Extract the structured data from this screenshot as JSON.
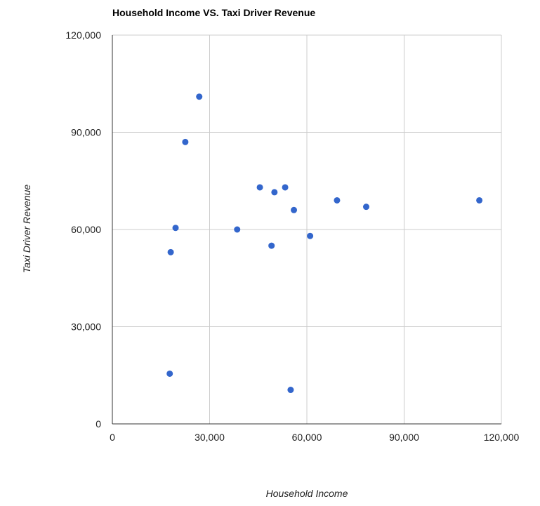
{
  "chart_data": {
    "type": "scatter",
    "title": "Household Income VS. Taxi Driver Revenue",
    "xlabel": "Household Income",
    "ylabel": "Taxi Driver Revenue",
    "xlim": [
      0,
      120000
    ],
    "ylim": [
      0,
      120000
    ],
    "x_ticks": [
      "0",
      "30,000",
      "60,000",
      "90,000",
      "120,000"
    ],
    "y_ticks": [
      "0",
      "30,000",
      "60,000",
      "90,000",
      "120,000"
    ],
    "x_tick_values": [
      0,
      30000,
      60000,
      90000,
      120000
    ],
    "y_tick_values": [
      0,
      30000,
      60000,
      90000,
      120000
    ],
    "grid": true,
    "colors": {
      "point": "#3366cc"
    },
    "points": [
      {
        "x": 26800,
        "y": 101000
      },
      {
        "x": 22500,
        "y": 87000
      },
      {
        "x": 19500,
        "y": 60500
      },
      {
        "x": 18000,
        "y": 53000
      },
      {
        "x": 17700,
        "y": 15500
      },
      {
        "x": 38500,
        "y": 60000
      },
      {
        "x": 45500,
        "y": 73000
      },
      {
        "x": 50000,
        "y": 71500
      },
      {
        "x": 53300,
        "y": 73000
      },
      {
        "x": 56000,
        "y": 66000
      },
      {
        "x": 49100,
        "y": 55000
      },
      {
        "x": 61000,
        "y": 58000
      },
      {
        "x": 69300,
        "y": 69000
      },
      {
        "x": 78300,
        "y": 67000
      },
      {
        "x": 113200,
        "y": 69000
      },
      {
        "x": 55000,
        "y": 10500
      }
    ]
  }
}
